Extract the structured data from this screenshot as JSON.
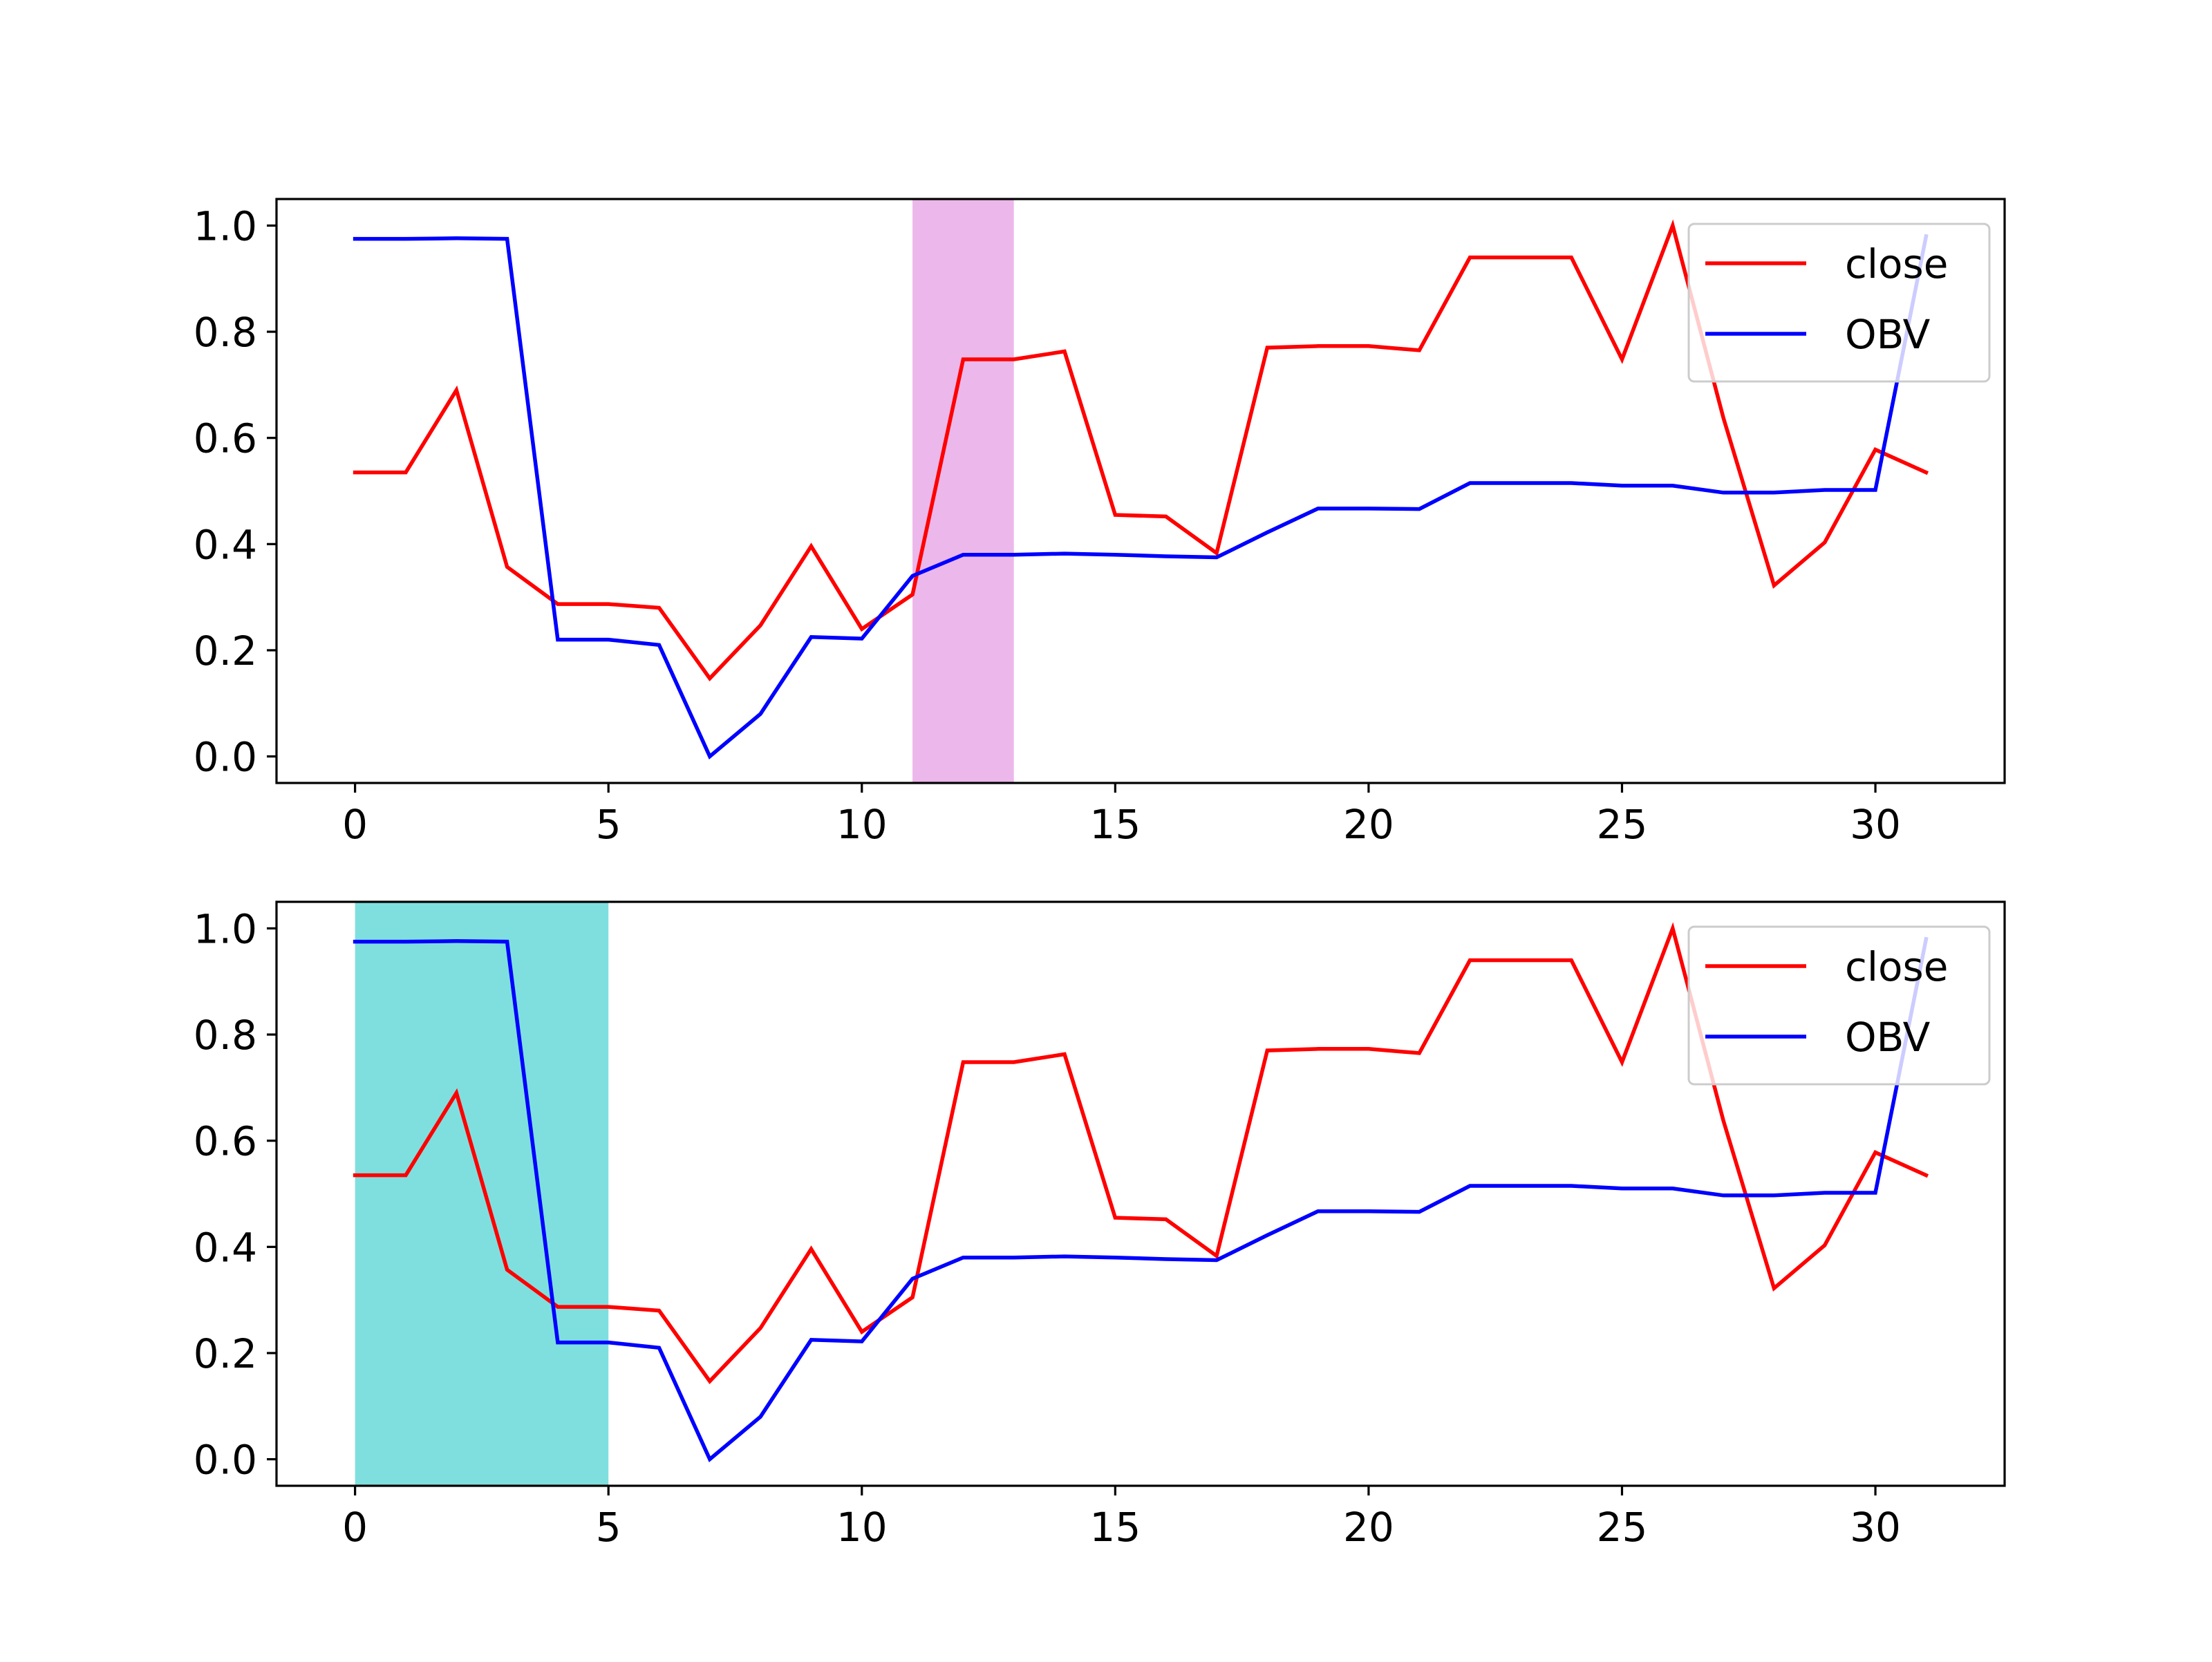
{
  "chart_data": [
    {
      "type": "line",
      "title": "",
      "xlabel": "",
      "ylabel": "",
      "xlim": [
        -1.55,
        32.55
      ],
      "ylim": [
        -0.05,
        1.05
      ],
      "xticks": [
        0,
        5,
        10,
        15,
        20,
        25,
        30
      ],
      "xtick_labels": [
        "0",
        "5",
        "10",
        "15",
        "20",
        "25",
        "30"
      ],
      "yticks": [
        0.0,
        0.2,
        0.4,
        0.6,
        0.8,
        1.0
      ],
      "ytick_labels": [
        "0.0",
        "0.2",
        "0.4",
        "0.6",
        "0.8",
        "1.0"
      ],
      "grid": false,
      "legend_position": "top-right",
      "highlight": {
        "x0": 11,
        "x1": 13,
        "color": "#da70d6"
      },
      "x": [
        0,
        1,
        2,
        3,
        4,
        5,
        6,
        7,
        8,
        9,
        10,
        11,
        12,
        13,
        14,
        15,
        16,
        17,
        18,
        19,
        20,
        21,
        22,
        23,
        24,
        25,
        26,
        27,
        28,
        29,
        30,
        31
      ],
      "series": [
        {
          "name": "close",
          "color": "#ff0000",
          "values": [
            0.535,
            0.535,
            0.69,
            0.357,
            0.287,
            0.287,
            0.28,
            0.147,
            0.247,
            0.396,
            0.24,
            0.305,
            0.748,
            0.748,
            0.763,
            0.455,
            0.452,
            0.383,
            0.77,
            0.773,
            0.773,
            0.765,
            0.94,
            0.94,
            0.94,
            0.748,
            1.0,
            0.638,
            0.322,
            0.403,
            0.578,
            0.535
          ]
        },
        {
          "name": "OBV",
          "color": "#0000ff",
          "values": [
            0.975,
            0.975,
            0.976,
            0.975,
            0.22,
            0.22,
            0.21,
            0.0,
            0.08,
            0.225,
            0.222,
            0.34,
            0.38,
            0.38,
            0.382,
            0.38,
            0.377,
            0.375,
            0.422,
            0.467,
            0.467,
            0.466,
            0.515,
            0.515,
            0.515,
            0.51,
            0.51,
            0.497,
            0.497,
            0.502,
            0.502,
            0.98
          ]
        }
      ]
    },
    {
      "type": "line",
      "title": "",
      "xlabel": "",
      "ylabel": "",
      "xlim": [
        -1.55,
        32.55
      ],
      "ylim": [
        -0.05,
        1.05
      ],
      "xticks": [
        0,
        5,
        10,
        15,
        20,
        25,
        30
      ],
      "xtick_labels": [
        "0",
        "5",
        "10",
        "15",
        "20",
        "25",
        "30"
      ],
      "yticks": [
        0.0,
        0.2,
        0.4,
        0.6,
        0.8,
        1.0
      ],
      "ytick_labels": [
        "0.0",
        "0.2",
        "0.4",
        "0.6",
        "0.8",
        "1.0"
      ],
      "grid": false,
      "legend_position": "top-right",
      "highlight": {
        "x0": 0,
        "x1": 5,
        "color": "#00c0c0"
      },
      "x": [
        0,
        1,
        2,
        3,
        4,
        5,
        6,
        7,
        8,
        9,
        10,
        11,
        12,
        13,
        14,
        15,
        16,
        17,
        18,
        19,
        20,
        21,
        22,
        23,
        24,
        25,
        26,
        27,
        28,
        29,
        30,
        31
      ],
      "series": [
        {
          "name": "close",
          "color": "#ff0000",
          "values": [
            0.535,
            0.535,
            0.69,
            0.357,
            0.287,
            0.287,
            0.28,
            0.147,
            0.247,
            0.396,
            0.24,
            0.305,
            0.748,
            0.748,
            0.763,
            0.455,
            0.452,
            0.383,
            0.77,
            0.773,
            0.773,
            0.765,
            0.94,
            0.94,
            0.94,
            0.748,
            1.0,
            0.638,
            0.322,
            0.403,
            0.578,
            0.535
          ]
        },
        {
          "name": "OBV",
          "color": "#0000ff",
          "values": [
            0.975,
            0.975,
            0.976,
            0.975,
            0.22,
            0.22,
            0.21,
            0.0,
            0.08,
            0.225,
            0.222,
            0.34,
            0.38,
            0.38,
            0.382,
            0.38,
            0.377,
            0.375,
            0.422,
            0.467,
            0.467,
            0.466,
            0.515,
            0.515,
            0.515,
            0.51,
            0.51,
            0.497,
            0.497,
            0.502,
            0.502,
            0.98
          ]
        }
      ]
    }
  ]
}
